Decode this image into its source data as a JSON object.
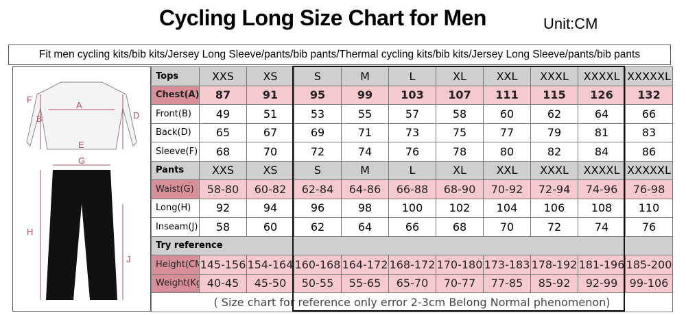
{
  "header": {
    "title": "Cycling Long Size Chart for Men",
    "unit": "Unit:CM",
    "subtitle": "Fit men cycling kits/bib kits/Jersey Long Sleeve/pants/bib pants/Thermal cycling kits/bib kits/Jersey Long Sleeve/pants/bib pants"
  },
  "diagram": {
    "labels": [
      "F",
      "A",
      "B",
      "D",
      "E",
      "G",
      "H",
      "J"
    ]
  },
  "table": {
    "rows": [
      [
        "Tops",
        "XXS",
        "XS",
        "S",
        "M",
        "L",
        "XL",
        "XXL",
        "XXXL",
        "XXXXL",
        "XXXXXL"
      ],
      [
        "Chest(A)",
        87,
        91,
        95,
        99,
        103,
        107,
        111,
        115,
        126,
        132
      ],
      [
        "Front(B)",
        49,
        51,
        53,
        55,
        57,
        58,
        60,
        62,
        64,
        66
      ],
      [
        "Back(D)",
        65,
        67,
        69,
        71,
        73,
        75,
        77,
        79,
        81,
        83
      ],
      [
        "Sleeve(F)",
        68,
        70,
        72,
        74,
        76,
        78,
        80,
        82,
        84,
        86
      ],
      [
        "Pants",
        "XXS",
        "XS",
        "S",
        "M",
        "L",
        "XL",
        "XXL",
        "XXXL",
        "XXXXL",
        "XXXXXL"
      ],
      [
        "Waist(G)",
        "58-80",
        "60-82",
        "62-84",
        "64-86",
        "66-88",
        "68-90",
        "70-92",
        "72-94",
        "74-96",
        "76-98"
      ],
      [
        "Long(H)",
        92,
        94,
        96,
        98,
        100,
        102,
        104,
        106,
        108,
        110
      ],
      [
        "Inseam(J)",
        58,
        60,
        62,
        64,
        66,
        68,
        70,
        72,
        74,
        76
      ],
      [
        "Try reference"
      ],
      [
        "Height(CM)",
        "145-156",
        "154-164",
        "160-168",
        "164-172",
        "168-172",
        "170-180",
        "173-183",
        "178-192",
        "181-196",
        "185-200"
      ],
      [
        "Weight(Kg)",
        "40-45",
        "45-50",
        "50-55",
        "55-65",
        "65-70",
        "70-77",
        "77-85",
        "85-92",
        "92-99",
        "99-106"
      ]
    ],
    "note": "( Size chart for reference only  error 2-3cm  Belong Normal phenomenon)"
  }
}
